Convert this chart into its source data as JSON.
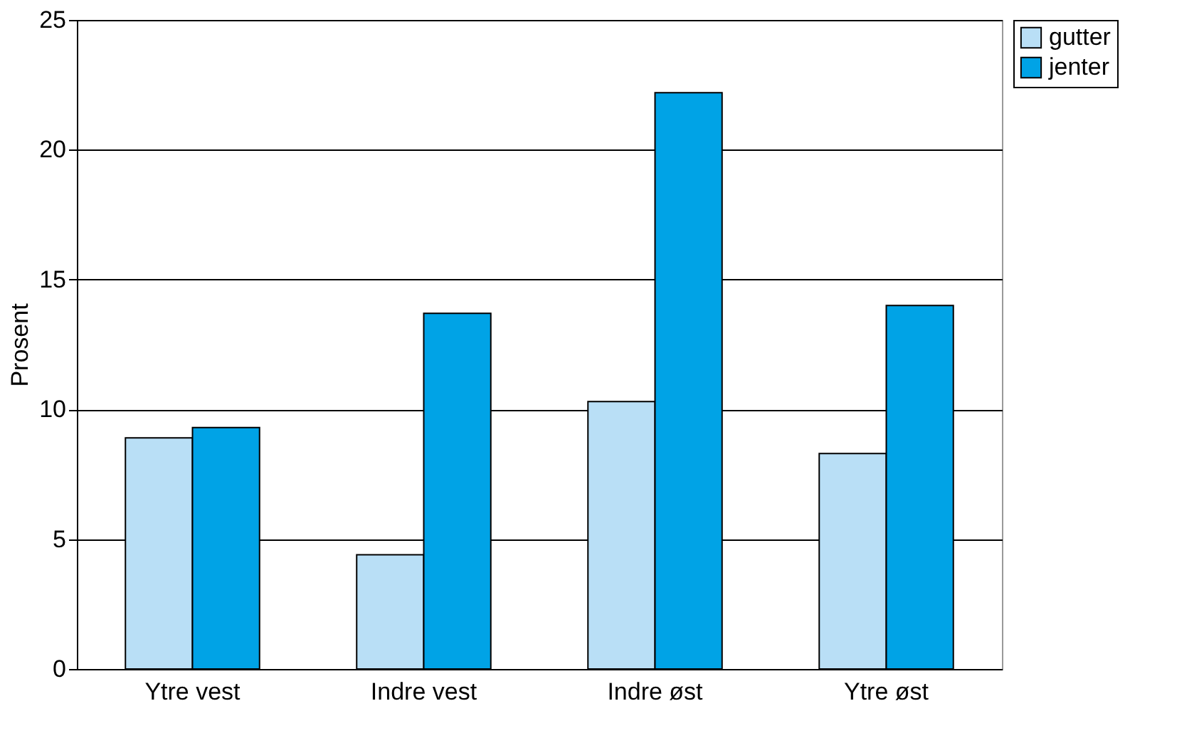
{
  "chart_data": {
    "type": "bar",
    "ylabel": "Prosent",
    "categories": [
      "Ytre vest",
      "Indre vest",
      "Indre øst",
      "Ytre øst"
    ],
    "series": [
      {
        "name": "gutter",
        "color": "#b9dff6",
        "values": [
          8.9,
          4.4,
          10.3,
          8.3
        ]
      },
      {
        "name": "jenter",
        "color": "#00a3e6",
        "values": [
          9.3,
          13.7,
          22.2,
          14.0
        ]
      }
    ],
    "ylim": [
      0,
      25
    ],
    "yticks": [
      0,
      5,
      10,
      15,
      20,
      25
    ],
    "grid": "y",
    "legend": "right"
  }
}
